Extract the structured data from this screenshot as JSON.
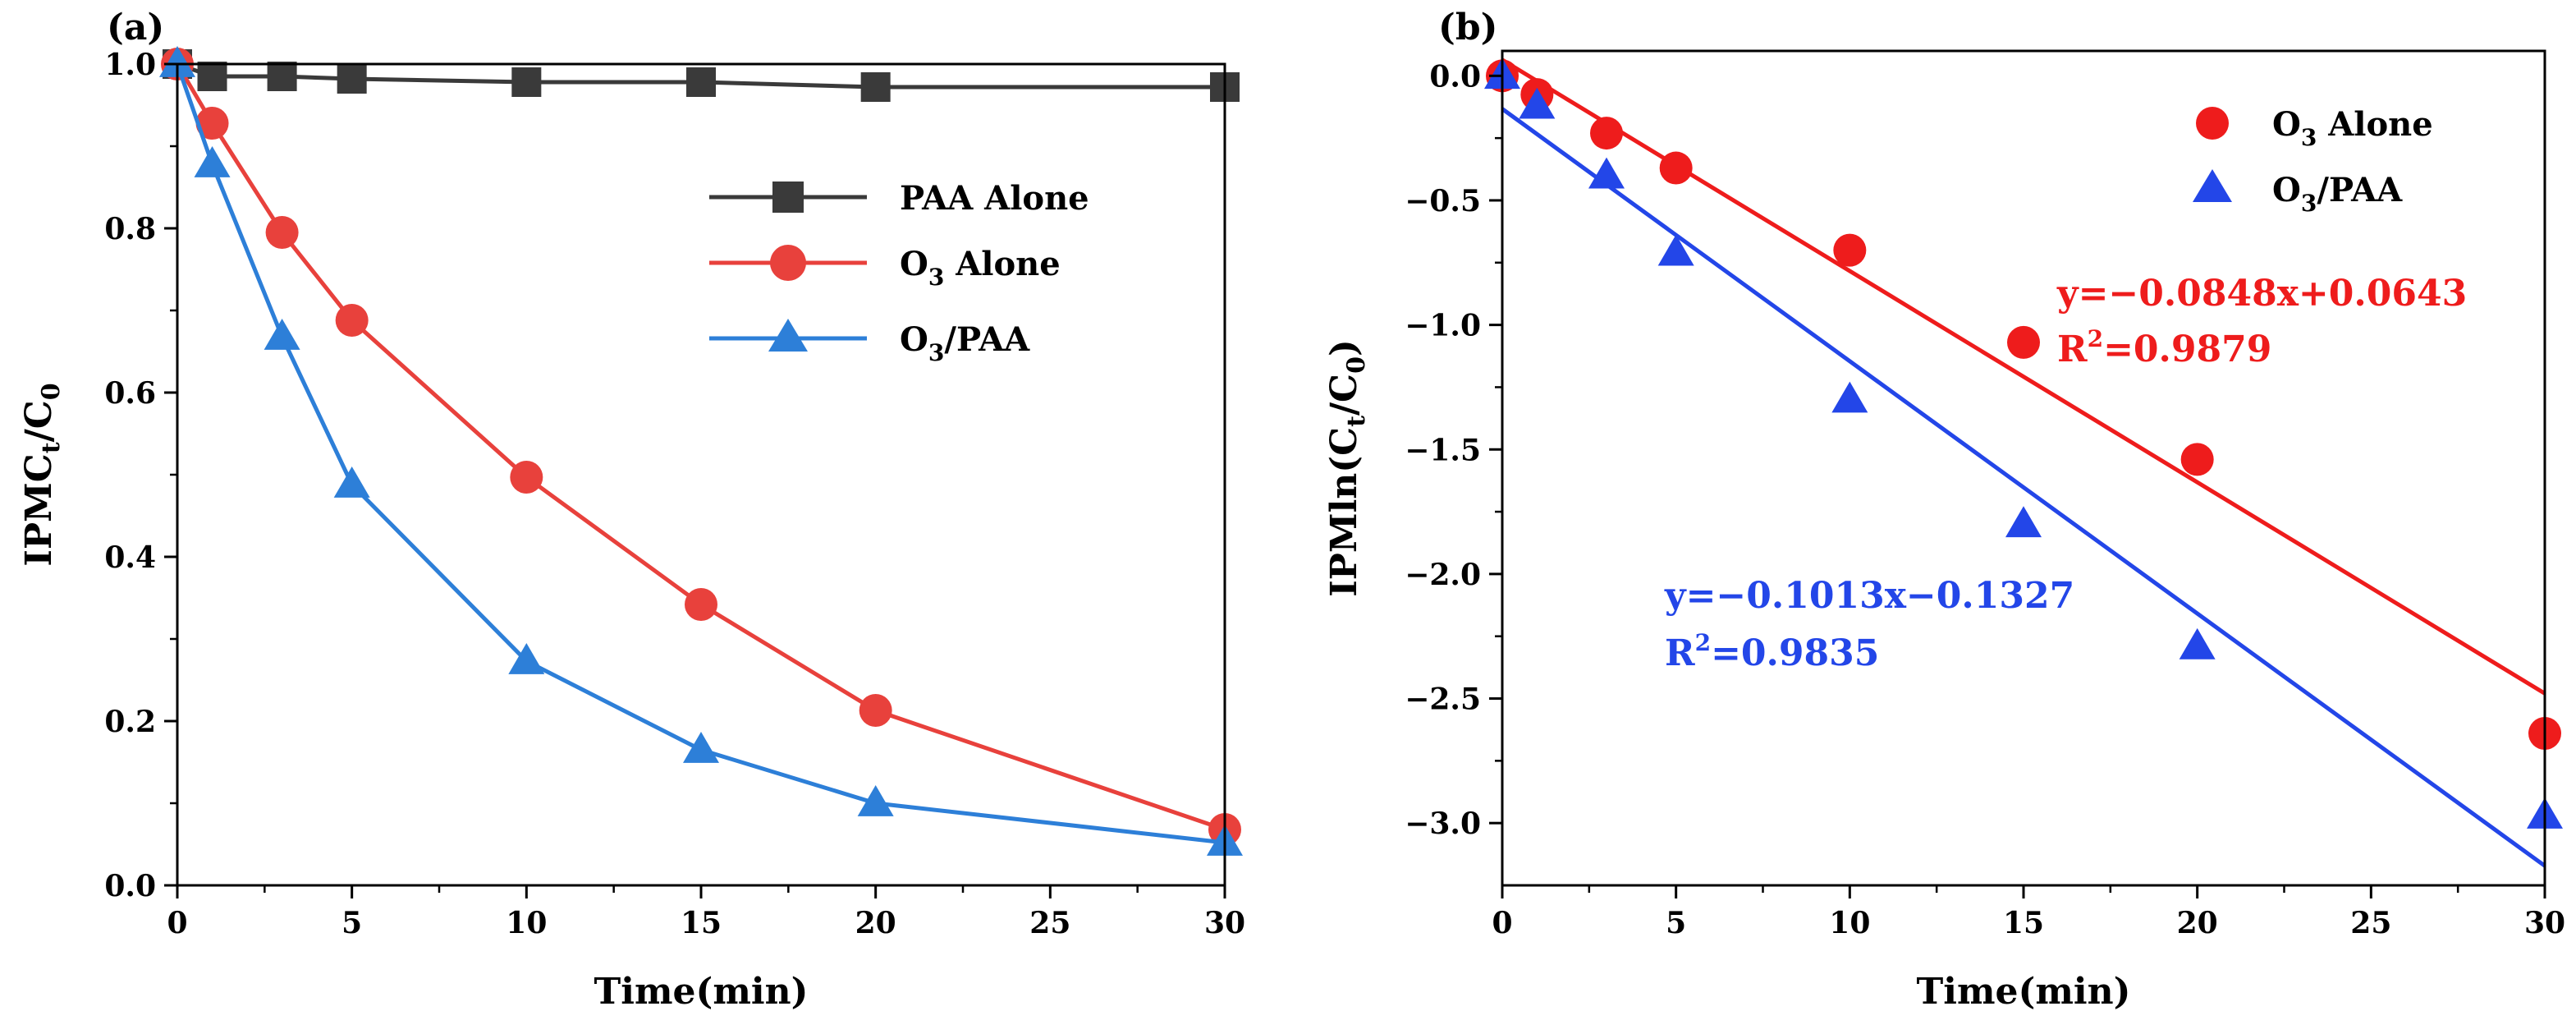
{
  "chart_data": [
    {
      "panel_label": "(a)",
      "type": "line",
      "xlabel": "Time(min)",
      "ylabel": {
        "main": "IPMC",
        "sub": "t",
        "rest": "/C",
        "sub2": "0"
      },
      "xlim": [
        0,
        30
      ],
      "ylim": [
        0,
        1.0
      ],
      "xticks": [
        0,
        5,
        10,
        15,
        20,
        25,
        30
      ],
      "yticks": [
        0.0,
        0.2,
        0.4,
        0.6,
        0.8,
        1.0
      ],
      "xtick_labels": [
        "0",
        "5",
        "10",
        "15",
        "20",
        "25",
        "30"
      ],
      "ytick_labels": [
        "0.0",
        "0.2",
        "0.4",
        "0.6",
        "0.8",
        "1.0"
      ],
      "legend_position": "top-right",
      "x": [
        0,
        1,
        3,
        5,
        10,
        15,
        20,
        30
      ],
      "series": [
        {
          "name": "PAA Alone",
          "label_main": "PAA Alone",
          "label_sub": "",
          "label_rest": "",
          "color": "#3a3a3a",
          "marker": "square",
          "values": [
            1.0,
            0.985,
            0.985,
            0.982,
            0.978,
            0.978,
            0.972,
            0.972
          ]
        },
        {
          "name": "O3 Alone",
          "label_main": "O",
          "label_sub": "3",
          "label_rest": " Alone",
          "color": "#e8413c",
          "marker": "circle",
          "values": [
            1.0,
            0.928,
            0.795,
            0.688,
            0.497,
            0.342,
            0.213,
            0.068
          ]
        },
        {
          "name": "O3/PAA",
          "label_main": "O",
          "label_sub": "3",
          "label_rest": "/PAA",
          "color": "#2d7fd8",
          "marker": "triangle",
          "values": [
            1.0,
            0.878,
            0.668,
            0.488,
            0.273,
            0.165,
            0.1,
            0.052
          ]
        }
      ]
    },
    {
      "panel_label": "(b)",
      "type": "scatter",
      "xlabel": "Time(min)",
      "ylabel": {
        "main": "IPMln(C",
        "sub": "t",
        "rest": "/C",
        "sub2": "0",
        "end": ")"
      },
      "xlim": [
        0,
        30
      ],
      "ylim": [
        -3.25,
        0.1
      ],
      "xticks": [
        0,
        5,
        10,
        15,
        20,
        25,
        30
      ],
      "yticks": [
        0.0,
        -0.5,
        -1.0,
        -1.5,
        -2.0,
        -2.5,
        -3.0
      ],
      "xtick_labels": [
        "0",
        "5",
        "10",
        "15",
        "20",
        "25",
        "30"
      ],
      "ytick_labels": [
        "0.0",
        "−0.5",
        "−1.0",
        "−1.5",
        "−2.0",
        "−2.5",
        "−3.0"
      ],
      "legend_position": "top-right",
      "x": [
        0,
        1,
        3,
        5,
        10,
        15,
        20,
        30
      ],
      "series": [
        {
          "name": "O3 Alone",
          "label_main": "O",
          "label_sub": "3",
          "label_rest": " Alone",
          "color": "#ee1c1c",
          "marker": "circle",
          "values": [
            0.0,
            -0.075,
            -0.23,
            -0.37,
            -0.7,
            -1.07,
            -1.54,
            -2.64
          ],
          "fit": {
            "slope": -0.0848,
            "intercept": 0.0643
          },
          "equation": "y=−0.0848x+0.0643",
          "r2_main": "R",
          "r2_sup": "2",
          "r2_rest": "=0.9879"
        },
        {
          "name": "O3/PAA",
          "label_main": "O",
          "label_sub": "3",
          "label_rest": "/PAA",
          "color": "#2346e8",
          "marker": "triangle",
          "values": [
            0.0,
            -0.12,
            -0.4,
            -0.71,
            -1.3,
            -1.8,
            -2.29,
            -2.97
          ],
          "fit": {
            "slope": -0.1013,
            "intercept": -0.1327
          },
          "equation": "y=−0.1013x−0.1327",
          "r2_main": "R",
          "r2_sup": "2",
          "r2_rest": "=0.9835"
        }
      ]
    }
  ]
}
